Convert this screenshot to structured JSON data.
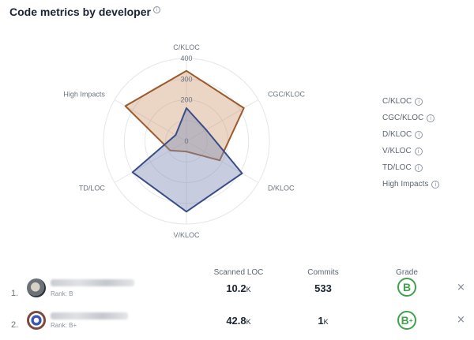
{
  "header": {
    "title": "Code metrics by developer",
    "info_icon": "info-icon"
  },
  "chart_data": {
    "type": "radar",
    "axes": [
      "C/KLOC",
      "CGC/KLOC",
      "D/KLOC",
      "V/KLOC",
      "TD/LOC",
      "High Impacts"
    ],
    "ticks": [
      "0",
      "200",
      "300",
      "400"
    ],
    "rmax": 400,
    "series": [
      {
        "values": [
          340,
          320,
          185,
          50,
          90,
          340
        ],
        "color": "#9a5a2b",
        "fill": "rgba(205,150,110,0.40)"
      },
      {
        "values": [
          160,
          110,
          310,
          340,
          300,
          60
        ],
        "color": "#3a4d86",
        "fill": "rgba(130,145,185,0.45)"
      }
    ],
    "grid": true
  },
  "legend": [
    {
      "label": "C/KLOC"
    },
    {
      "label": "CGC/KLOC"
    },
    {
      "label": "D/KLOC"
    },
    {
      "label": "V/KLOC"
    },
    {
      "label": "TD/LOC"
    },
    {
      "label": "High Impacts"
    }
  ],
  "table": {
    "headers": {
      "scanned": "Scanned LOC",
      "commits": "Commits",
      "grade": "Grade"
    },
    "rows": [
      {
        "num": "1.",
        "rank": "Rank: B",
        "scanned": "10.2",
        "scanned_unit": "K",
        "commits": "533",
        "commits_unit": "",
        "grade": "B",
        "grade_sup": ""
      },
      {
        "num": "2.",
        "rank": "Rank: B+",
        "scanned": "42.8",
        "scanned_unit": "K",
        "commits": "1",
        "commits_unit": "K",
        "grade": "B",
        "grade_sup": "+"
      }
    ],
    "close_glyph": "×"
  }
}
